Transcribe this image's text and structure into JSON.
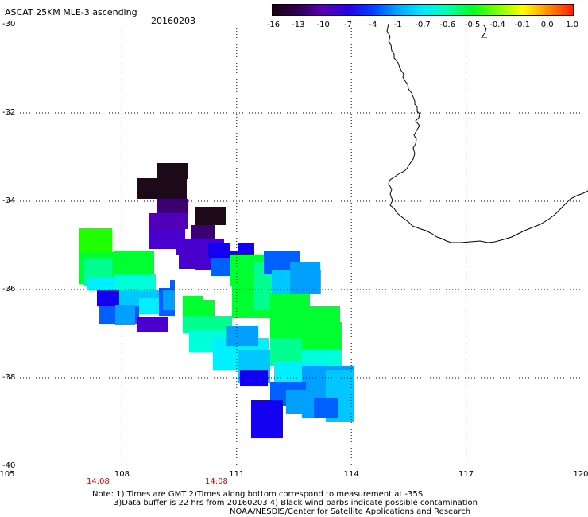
{
  "header": {
    "product": "ASCAT 25KM MLE-3 ascending",
    "date": "20160203"
  },
  "colorbar": {
    "labels": [
      "-16",
      "-13",
      "-10",
      "-7",
      "-4",
      "-1",
      "-0.7",
      "-0.6",
      "-0.5",
      "-0.4",
      "-0.1",
      "0.0",
      "1.0"
    ],
    "colors": [
      "#1a0015",
      "#2e0050",
      "#5a00b0",
      "#2b00e0",
      "#0040ff",
      "#00a8ff",
      "#00e8ff",
      "#00ffb0",
      "#00ff20",
      "#80ff00",
      "#ffff00",
      "#ff9000",
      "#ff2000"
    ]
  },
  "map": {
    "lon_ticks": [
      "105",
      "108",
      "111",
      "114",
      "117",
      "120"
    ],
    "lat_ticks": [
      "-30",
      "-32",
      "-34",
      "-36",
      "-38",
      "-40"
    ],
    "lon_range": [
      105,
      120
    ],
    "lat_range": [
      -30,
      -40
    ],
    "grid": "dotted",
    "coastline": "Southwestern Australia"
  },
  "time_labels": [
    "14:08",
    "14:08"
  ],
  "notes": {
    "line1": "Note: 1) Times are GMT 2)Times along bottom correspond to measurement at -35S",
    "line2": "3)Data buffer is 22 hrs from 20160203 4) Black wind barbs indicate possible contamination",
    "line3": "NOAA/NESDIS/Center for Satellite Applications and Research"
  },
  "colors": {
    "black": "#1c0a18",
    "indigo": "#3c0070",
    "purple": "#5200b8",
    "violet": "#4a00cc",
    "blue": "#1400f0",
    "azure": "#0060ff",
    "lightblue": "#00a0ff",
    "sky": "#00c8ff",
    "cyan": "#00f0ff",
    "aqua": "#00ffd8",
    "mint": "#00ff90",
    "green": "#00ff30",
    "lime": "#20ff00"
  }
}
